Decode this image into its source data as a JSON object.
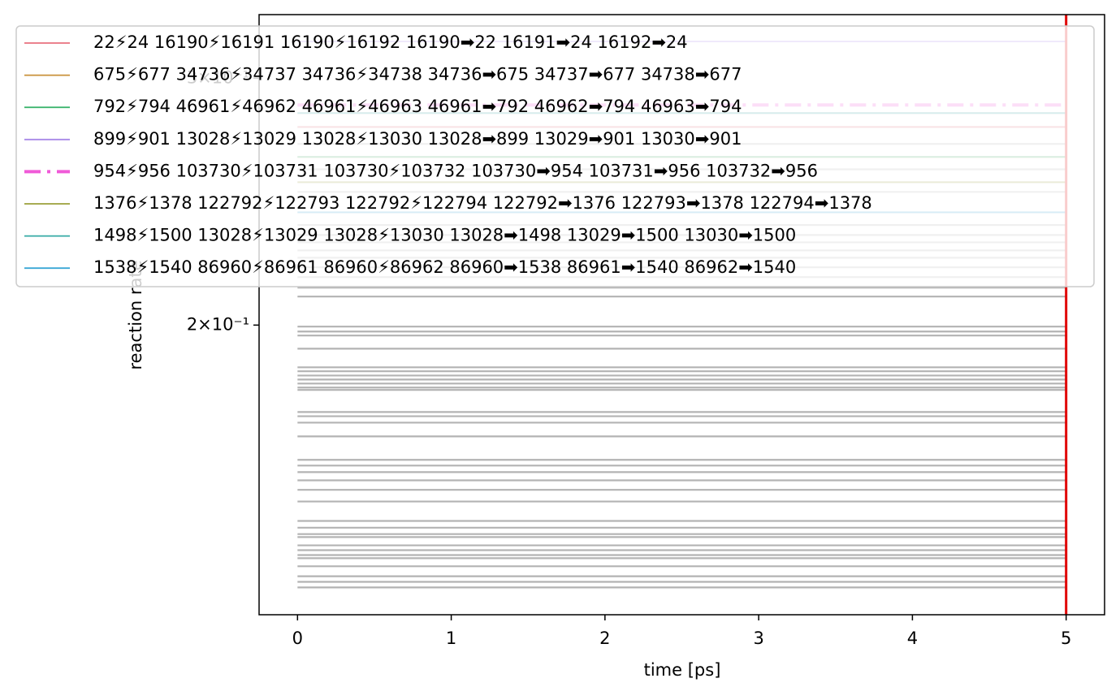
{
  "chart_data": {
    "type": "line",
    "x_label": "time [ps]",
    "y_label": "reaction rate",
    "x": [
      0,
      5
    ],
    "xlim": [
      -0.25,
      5.25
    ],
    "xticks": [
      0,
      1,
      2,
      3,
      4,
      5
    ],
    "ylim": [
      0.1243,
      0.333
    ],
    "y_scale": "log",
    "yticks": [
      {
        "value": 0.2,
        "label": "2×10⁻¹"
      },
      {
        "value": 0.3,
        "label": "3×10⁻¹"
      }
    ],
    "vline": {
      "x": 5,
      "color": "#e00000"
    },
    "legend": "upper left",
    "series": [
      {
        "name": "22⚡24 16190⚡16191 16190⚡16192 16190➡22 16191➡24 16192➡24",
        "color": "#e8707e",
        "style": "solid",
        "values": [
          0.2769,
          0.2769
        ]
      },
      {
        "name": "675⚡677 34736⚡34737 34736⚡34738 34736➡675 34737➡677 34738➡677",
        "color": "#c9913a",
        "style": "solid",
        "values": [
          0.2636,
          0.2636
        ]
      },
      {
        "name": "792⚡794 46961⚡46962 46961⚡46963 46961➡792 46962➡794 46963➡794",
        "color": "#3fb56f",
        "style": "solid",
        "values": [
          0.2636,
          0.2636
        ]
      },
      {
        "name": "899⚡901 13028⚡13029 13028⚡13030 13028➡899 13029➡901 13030➡901",
        "color": "#a889e8",
        "style": "solid",
        "values": [
          0.3186,
          0.3186
        ]
      },
      {
        "name": "954⚡956 103730⚡103731 103730⚡103732 103730➡954 103731➡956 103732➡956",
        "color": "#f05ad8",
        "style": "dashdot",
        "values": [
          0.2871,
          0.2871
        ]
      },
      {
        "name": "1376⚡1378 122792⚡122793 122792⚡122794 122792➡1376 122793➡1378 122794➡1378",
        "color": "#9ba03a",
        "style": "solid",
        "values": [
          0.2529,
          0.2529
        ]
      },
      {
        "name": "1498⚡1500 13028⚡13029 13028⚡13030 13028➡1498 13029➡1500 13030➡1500",
        "color": "#35aaa5",
        "style": "solid",
        "values": [
          0.2833,
          0.2833
        ]
      },
      {
        "name": "1538⚡1540 86960⚡86961 86960⚡86962 86960➡1538 86961➡1540 86962➡1540",
        "color": "#3aa7d6",
        "style": "solid",
        "values": [
          0.2407,
          0.2407
        ]
      }
    ],
    "background_lines": {
      "color": "#b3b3b3",
      "values": [
        0.2833,
        0.2769,
        0.2693,
        0.2636,
        0.2583,
        0.2529,
        0.2489,
        0.2407,
        0.2357,
        0.2319,
        0.2291,
        0.2261,
        0.2234,
        0.2199,
        0.2164,
        0.2127,
        0.2096,
        0.1995,
        0.1979,
        0.1966,
        0.1924,
        0.1866,
        0.1854,
        0.1841,
        0.1829,
        0.1817,
        0.1805,
        0.1798,
        0.1734,
        0.1722,
        0.1704,
        0.1666,
        0.1603,
        0.1588,
        0.1571,
        0.155,
        0.1526,
        0.1497,
        0.145,
        0.1434,
        0.1419,
        0.1412,
        0.1393,
        0.1382,
        0.1371,
        0.1364,
        0.1346,
        0.1324,
        0.1312,
        0.13
      ]
    }
  }
}
